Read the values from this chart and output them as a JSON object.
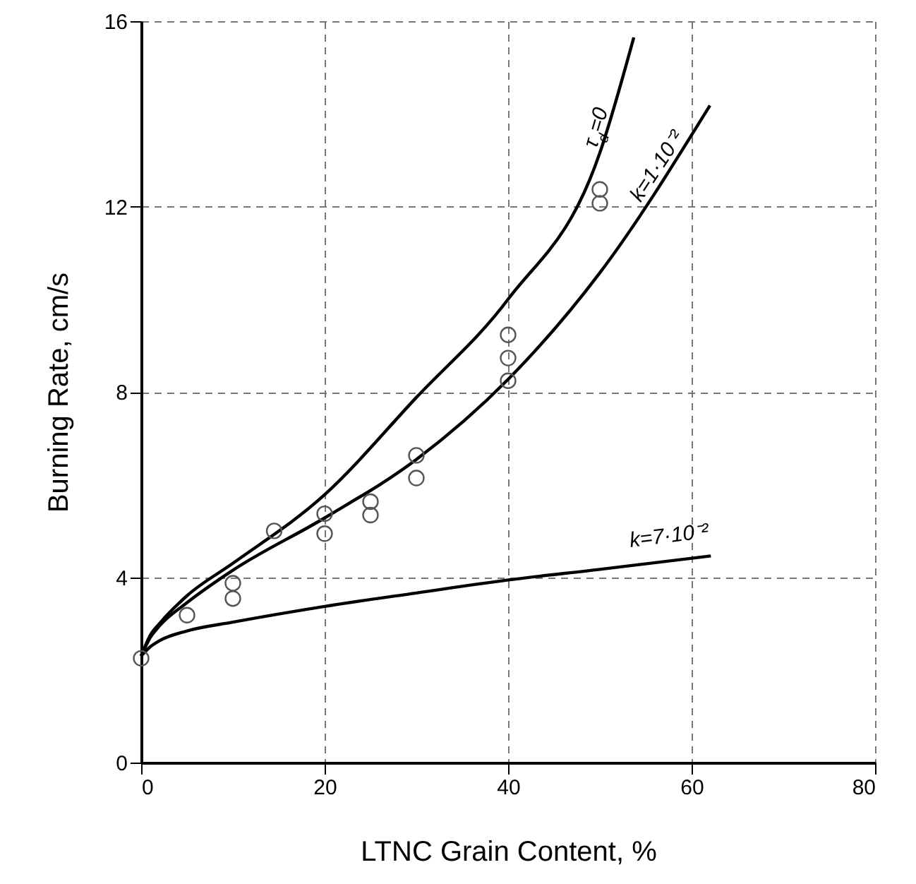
{
  "chart_data": {
    "type": "line",
    "xlabel": "LTNC Grain Content, %",
    "ylabel": "Burning Rate, cm/s",
    "xlim": [
      0,
      80
    ],
    "xticks": [
      0,
      20,
      40,
      60,
      80
    ],
    "ylim": [
      0,
      16
    ],
    "yticks": [
      0,
      4,
      8,
      12,
      16
    ],
    "grid": true,
    "line_style": "solid",
    "series": [
      {
        "name": "τ$_{d}$=0",
        "color": "#000000",
        "x": [
          0,
          1,
          2,
          5,
          10,
          20,
          30,
          40,
          50,
          53.7
        ],
        "values": [
          2.3,
          2.75,
          3.0,
          3.6,
          4.3,
          5.78,
          7.88,
          10.0,
          13.16,
          15.65
        ]
      },
      {
        "name": "k=1·10⁻²",
        "color": "#000000",
        "x": [
          0,
          1,
          2,
          5,
          10,
          20,
          30,
          40,
          50,
          62
        ],
        "values": [
          2.3,
          2.7,
          2.95,
          3.45,
          4.15,
          5.28,
          6.54,
          8.27,
          10.57,
          14.18
        ]
      },
      {
        "name": "k=7·10⁻²",
        "color": "#000000",
        "x": [
          0,
          1,
          2,
          5,
          10,
          20,
          30,
          40,
          50,
          62.1
        ],
        "values": [
          2.3,
          2.5,
          2.63,
          2.84,
          3.03,
          3.37,
          3.66,
          3.94,
          4.17,
          4.46
        ]
      },
      {
        "type": "scatter",
        "marker": "circle",
        "color": "#555555",
        "x": [
          0,
          5,
          10,
          10,
          14.5,
          20,
          20,
          25,
          25,
          30,
          30,
          40,
          40,
          40,
          50,
          50
        ],
        "values": [
          2.25,
          3.18,
          3.87,
          3.54,
          5.0,
          5.37,
          4.94,
          5.63,
          5.34,
          6.63,
          6.14,
          9.23,
          8.73,
          8.24,
          12.37,
          12.07
        ]
      }
    ]
  }
}
